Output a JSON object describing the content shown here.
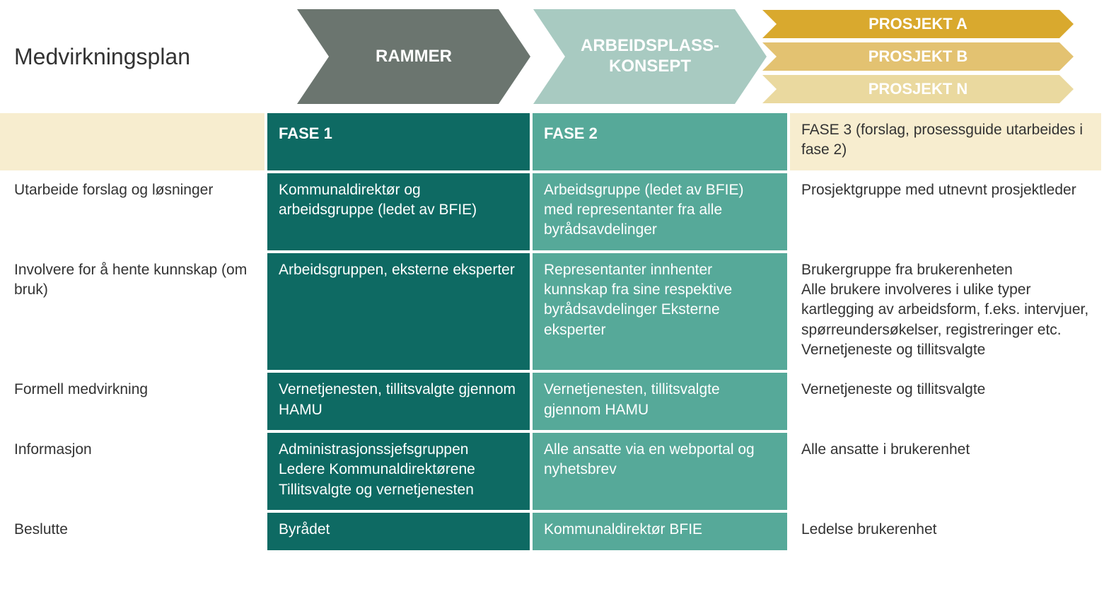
{
  "title": "Medvirkningsplan",
  "colors": {
    "chev_rammer": "#6b756f",
    "chev_arbeid": "#a8cac1",
    "proj_a": "#d9a92e",
    "proj_b": "#e3c271",
    "proj_n": "#ead99f",
    "header_beige": "#f7edcf",
    "fase1_bg": "#0e6a63",
    "fase2_bg": "#56a999",
    "text_dark": "#333333"
  },
  "chevrons": {
    "rammer": "RAMMER",
    "arbeid": "ARBEIDSPLASS-\nKONSEPT",
    "projects": [
      "PROSJEKT A",
      "PROSJEKT B",
      "PROSJEKT N"
    ]
  },
  "table": {
    "headers": {
      "c0": "",
      "c1": "FASE 1",
      "c2": "FASE 2",
      "c3_bold": "FASE 3",
      "c3_rest": " (forslag, prosessguide utarbeides i fase 2)"
    },
    "rows": [
      {
        "label": "Utarbeide forslag og løsninger",
        "f1": "Kommunaldirektør og arbeidsgruppe (ledet av BFIE)",
        "f2": "Arbeidsgruppe (ledet av BFIE) med representanter fra alle byrådsavdelinger",
        "f3": "Prosjektgruppe med utnevnt prosjektleder"
      },
      {
        "label": "Involvere for å hente kunnskap (om bruk)",
        "f1": "Arbeidsgruppen, eksterne eksperter",
        "f2": "Representanter innhenter kunnskap fra sine respektive byrådsavdelinger\nEksterne eksperter",
        "f3": "Brukergruppe fra brukerenheten\nAlle brukere involveres i ulike typer kartlegging av arbeidsform, f.eks. intervjuer, spørreundersøkelser, registreringer etc.\nVernetjeneste og tillitsvalgte"
      },
      {
        "label": "Formell medvirkning",
        "f1": "Vernetjenesten, tillitsvalgte gjennom HAMU",
        "f2": "Vernetjenesten, tillitsvalgte gjennom HAMU",
        "f3": "Vernetjeneste og tillitsvalgte"
      },
      {
        "label": "Informasjon",
        "f1": "Administrasjonssjefsgruppen\nLedere\nKommunaldirektørene\nTillitsvalgte og vernetjenesten",
        "f2": "Alle ansatte via en webportal og nyhetsbrev",
        "f3": "Alle ansatte i brukerenhet"
      },
      {
        "label": "Beslutte",
        "f1": "Byrådet",
        "f2": "Kommunaldirektør BFIE",
        "f3": "Ledelse brukerenhet"
      }
    ]
  }
}
